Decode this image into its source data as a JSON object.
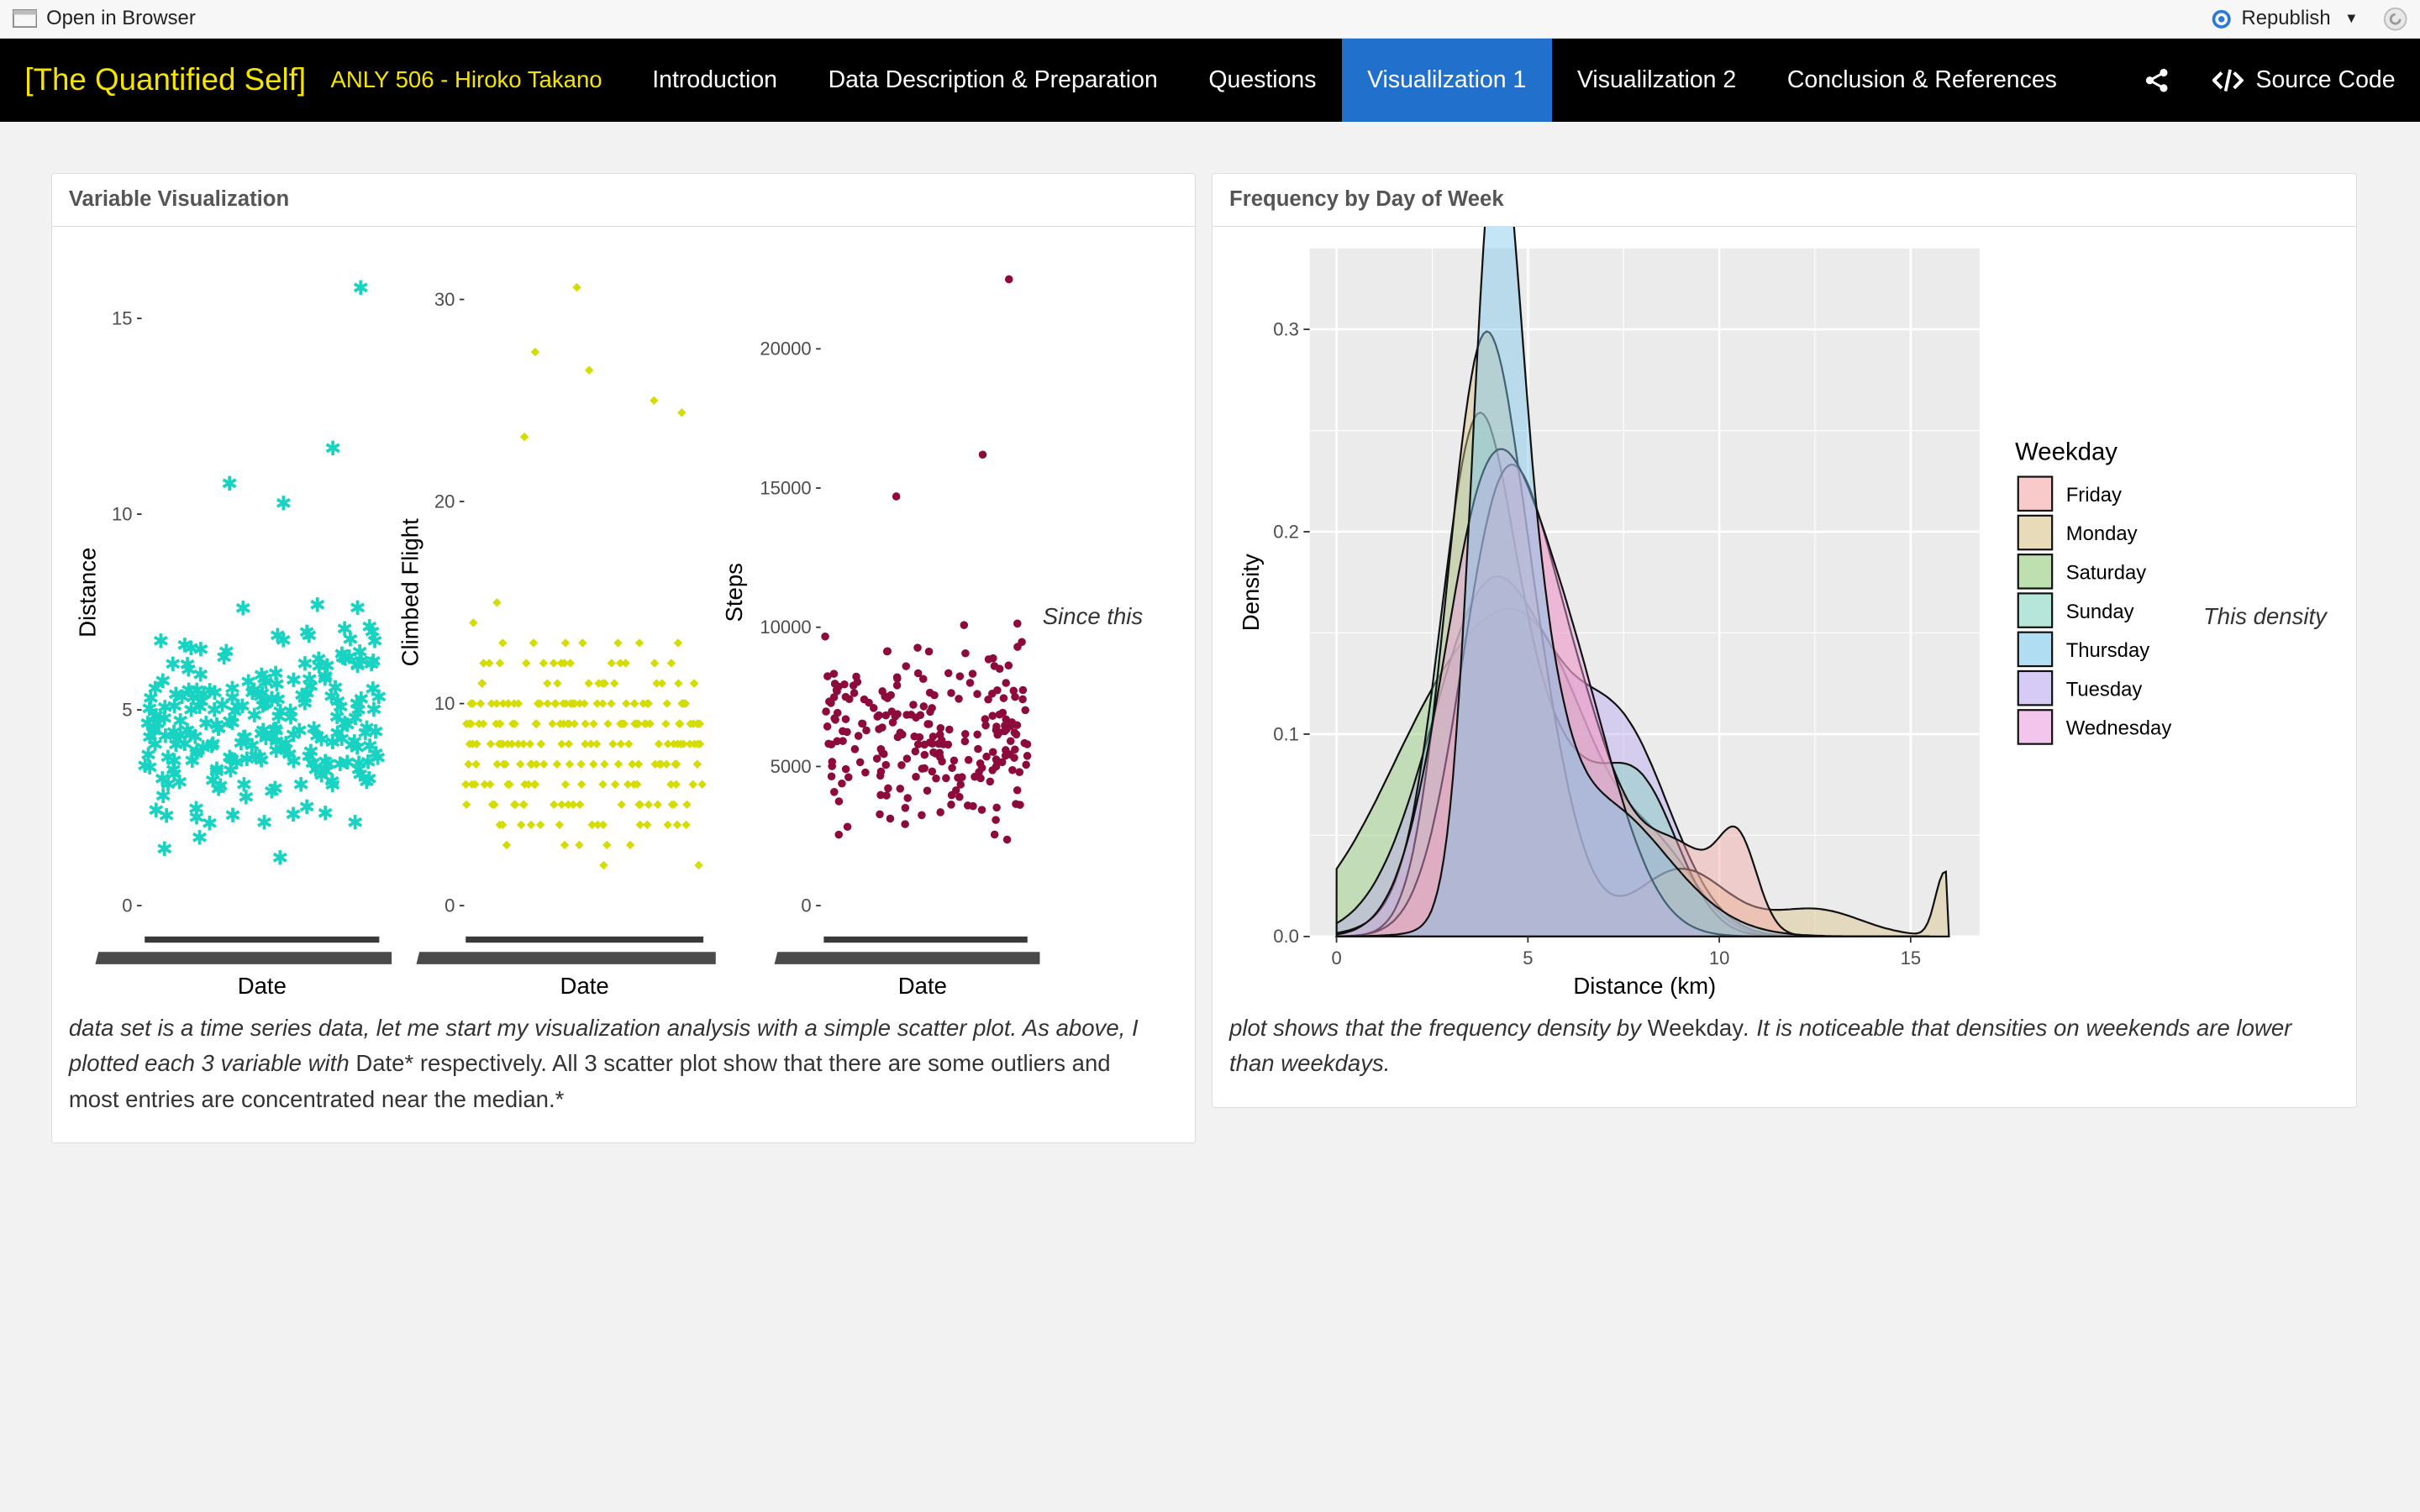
{
  "topbar": {
    "open_in_browser": "Open in Browser",
    "republish": "Republish"
  },
  "nav": {
    "brand": "[The Quantified Self]",
    "author": "ANLY 506 - Hiroko Takano",
    "items": [
      {
        "label": "Introduction"
      },
      {
        "label": "Data Description & Preparation"
      },
      {
        "label": "Questions"
      },
      {
        "label": "Visualilzation 1"
      },
      {
        "label": "Visualilzation 2"
      },
      {
        "label": "Conclusion & References"
      }
    ],
    "active_index": 3,
    "source_code": "Source Code"
  },
  "left_panel": {
    "title": "Variable Visualization",
    "side_note": "Since this",
    "caption": {
      "line1": "data set is a time series data, let me start my visualization analysis with a simple scatter plot. As above, I",
      "line2_italic": "plotted each 3 variable with ",
      "line2_normal": "Date* respectively. All 3 scatter plot show that there are some outliers and",
      "line3": "most entries are concentrated near the median.*"
    }
  },
  "right_panel": {
    "title": "Frequency by Day of Week",
    "side_note": "This density",
    "caption": {
      "line1_italic_a": "plot shows that the frequency density by ",
      "line1_normal": "Weekday",
      "line1_italic_b": ". It is noticeable that densities on weekends are lower",
      "line2": "than weekdays."
    }
  },
  "chart_data": [
    {
      "type": "scatter",
      "xlabel": "Date",
      "ylabel": "Distance",
      "yticks": [
        "0",
        "5",
        "10",
        "15"
      ],
      "ylim": [
        0,
        16
      ],
      "color": "#18d3c1",
      "marker": "asterisk",
      "note": "approx. 230 points, mostly between 1 and 9"
    },
    {
      "type": "scatter",
      "xlabel": "Date",
      "ylabel": "Climbed Flight",
      "yticks": [
        "0",
        "10",
        "20",
        "30"
      ],
      "ylim": [
        0,
        31
      ],
      "color": "#d4dc00",
      "marker": "diamond"
    },
    {
      "type": "scatter",
      "xlabel": "Date",
      "ylabel": "Steps",
      "yticks": [
        "0",
        "5000",
        "10000",
        "15000",
        "20000"
      ],
      "ylim": [
        0,
        22500
      ],
      "color": "#8c0a3c",
      "marker": "circle"
    },
    {
      "type": "area",
      "xlabel": "Distance (km)",
      "ylabel": "Density",
      "xticks": [
        "0",
        "5",
        "10",
        "15"
      ],
      "yticks": [
        "0.0",
        "0.1",
        "0.2",
        "0.3"
      ],
      "xlim": [
        -0.7,
        16.8
      ],
      "ylim": [
        0,
        0.34
      ],
      "legend_title": "Weekday",
      "legend_position": "right",
      "series": [
        {
          "name": "Friday",
          "color": "#f4a6a6"
        },
        {
          "name": "Monday",
          "color": "#d9c38a"
        },
        {
          "name": "Saturday",
          "color": "#92c97a"
        },
        {
          "name": "Sunday",
          "color": "#86d3c2"
        },
        {
          "name": "Thursday",
          "color": "#7cc6ea"
        },
        {
          "name": "Tuesday",
          "color": "#b9a8ef"
        },
        {
          "name": "Wednesday",
          "color": "#ea9fdf"
        }
      ]
    }
  ]
}
